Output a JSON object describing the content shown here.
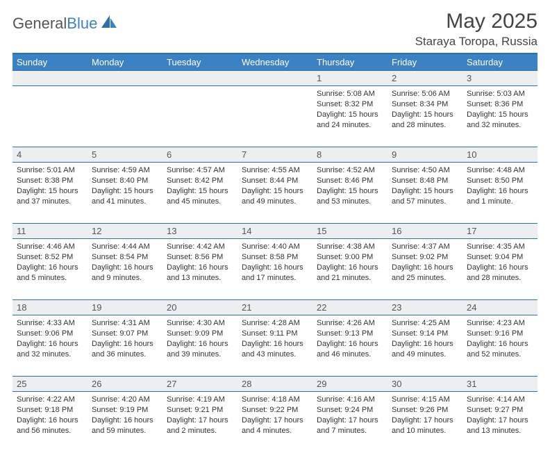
{
  "brand": {
    "part1": "General",
    "part2": "Blue"
  },
  "title": "May 2025",
  "subtitle": "Staraya Toropa, Russia",
  "colors": {
    "header_bg": "#3b82c4",
    "border": "#2e6fa8",
    "daynum_bg": "#eceef0",
    "text": "#333333"
  },
  "days_of_week": [
    "Sunday",
    "Monday",
    "Tuesday",
    "Wednesday",
    "Thursday",
    "Friday",
    "Saturday"
  ],
  "weeks": [
    [
      null,
      null,
      null,
      null,
      {
        "n": "1",
        "sr": "5:08 AM",
        "ss": "8:32 PM",
        "dl": "15 hours and 24 minutes."
      },
      {
        "n": "2",
        "sr": "5:06 AM",
        "ss": "8:34 PM",
        "dl": "15 hours and 28 minutes."
      },
      {
        "n": "3",
        "sr": "5:03 AM",
        "ss": "8:36 PM",
        "dl": "15 hours and 32 minutes."
      }
    ],
    [
      {
        "n": "4",
        "sr": "5:01 AM",
        "ss": "8:38 PM",
        "dl": "15 hours and 37 minutes."
      },
      {
        "n": "5",
        "sr": "4:59 AM",
        "ss": "8:40 PM",
        "dl": "15 hours and 41 minutes."
      },
      {
        "n": "6",
        "sr": "4:57 AM",
        "ss": "8:42 PM",
        "dl": "15 hours and 45 minutes."
      },
      {
        "n": "7",
        "sr": "4:55 AM",
        "ss": "8:44 PM",
        "dl": "15 hours and 49 minutes."
      },
      {
        "n": "8",
        "sr": "4:52 AM",
        "ss": "8:46 PM",
        "dl": "15 hours and 53 minutes."
      },
      {
        "n": "9",
        "sr": "4:50 AM",
        "ss": "8:48 PM",
        "dl": "15 hours and 57 minutes."
      },
      {
        "n": "10",
        "sr": "4:48 AM",
        "ss": "8:50 PM",
        "dl": "16 hours and 1 minute."
      }
    ],
    [
      {
        "n": "11",
        "sr": "4:46 AM",
        "ss": "8:52 PM",
        "dl": "16 hours and 5 minutes."
      },
      {
        "n": "12",
        "sr": "4:44 AM",
        "ss": "8:54 PM",
        "dl": "16 hours and 9 minutes."
      },
      {
        "n": "13",
        "sr": "4:42 AM",
        "ss": "8:56 PM",
        "dl": "16 hours and 13 minutes."
      },
      {
        "n": "14",
        "sr": "4:40 AM",
        "ss": "8:58 PM",
        "dl": "16 hours and 17 minutes."
      },
      {
        "n": "15",
        "sr": "4:38 AM",
        "ss": "9:00 PM",
        "dl": "16 hours and 21 minutes."
      },
      {
        "n": "16",
        "sr": "4:37 AM",
        "ss": "9:02 PM",
        "dl": "16 hours and 25 minutes."
      },
      {
        "n": "17",
        "sr": "4:35 AM",
        "ss": "9:04 PM",
        "dl": "16 hours and 28 minutes."
      }
    ],
    [
      {
        "n": "18",
        "sr": "4:33 AM",
        "ss": "9:06 PM",
        "dl": "16 hours and 32 minutes."
      },
      {
        "n": "19",
        "sr": "4:31 AM",
        "ss": "9:07 PM",
        "dl": "16 hours and 36 minutes."
      },
      {
        "n": "20",
        "sr": "4:30 AM",
        "ss": "9:09 PM",
        "dl": "16 hours and 39 minutes."
      },
      {
        "n": "21",
        "sr": "4:28 AM",
        "ss": "9:11 PM",
        "dl": "16 hours and 43 minutes."
      },
      {
        "n": "22",
        "sr": "4:26 AM",
        "ss": "9:13 PM",
        "dl": "16 hours and 46 minutes."
      },
      {
        "n": "23",
        "sr": "4:25 AM",
        "ss": "9:14 PM",
        "dl": "16 hours and 49 minutes."
      },
      {
        "n": "24",
        "sr": "4:23 AM",
        "ss": "9:16 PM",
        "dl": "16 hours and 52 minutes."
      }
    ],
    [
      {
        "n": "25",
        "sr": "4:22 AM",
        "ss": "9:18 PM",
        "dl": "16 hours and 56 minutes."
      },
      {
        "n": "26",
        "sr": "4:20 AM",
        "ss": "9:19 PM",
        "dl": "16 hours and 59 minutes."
      },
      {
        "n": "27",
        "sr": "4:19 AM",
        "ss": "9:21 PM",
        "dl": "17 hours and 2 minutes."
      },
      {
        "n": "28",
        "sr": "4:18 AM",
        "ss": "9:22 PM",
        "dl": "17 hours and 4 minutes."
      },
      {
        "n": "29",
        "sr": "4:16 AM",
        "ss": "9:24 PM",
        "dl": "17 hours and 7 minutes."
      },
      {
        "n": "30",
        "sr": "4:15 AM",
        "ss": "9:26 PM",
        "dl": "17 hours and 10 minutes."
      },
      {
        "n": "31",
        "sr": "4:14 AM",
        "ss": "9:27 PM",
        "dl": "17 hours and 13 minutes."
      }
    ]
  ],
  "labels": {
    "sunrise": "Sunrise:",
    "sunset": "Sunset:",
    "daylight": "Daylight:"
  }
}
